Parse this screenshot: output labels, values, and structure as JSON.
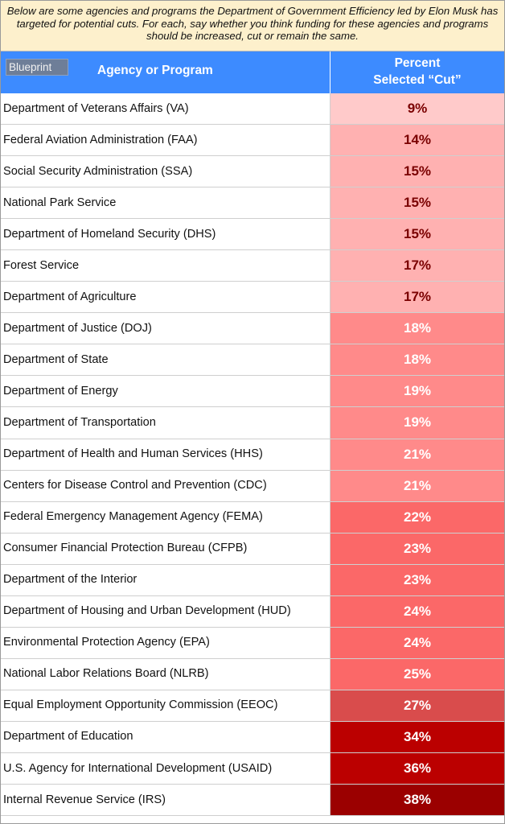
{
  "caption": "Below are some agencies and programs the Department of Government Efficiency led by Elon Musk has targeted for potential cuts. For each, say whether you think funding for these agencies and programs should be increased, cut or remain the same.",
  "logo_text": "Blueprint",
  "header": {
    "agency_label": "Agency or Program",
    "percent_line1": "Percent",
    "percent_line2": "Selected “Cut”"
  },
  "colors": {
    "header_blue": "#3d8bff",
    "caption_bg": "#fdf0cc"
  },
  "chart_data": {
    "type": "table",
    "columns": [
      "Agency or Program",
      "Percent Selected “Cut”"
    ],
    "rows": [
      {
        "agency": "Department of Veterans Affairs (VA)",
        "label": "9%",
        "value": 9,
        "bg": "#ffcaca",
        "fg": "#7a0000"
      },
      {
        "agency": "Federal Aviation Administration (FAA)",
        "label": "14%",
        "value": 14,
        "bg": "#ffb1b1",
        "fg": "#7a0000"
      },
      {
        "agency": "Social Security Administration (SSA)",
        "label": "15%",
        "value": 15,
        "bg": "#ffb1b1",
        "fg": "#7a0000"
      },
      {
        "agency": "National Park Service",
        "label": "15%",
        "value": 15,
        "bg": "#ffb1b1",
        "fg": "#7a0000"
      },
      {
        "agency": "Department of Homeland Security (DHS)",
        "label": "15%",
        "value": 15,
        "bg": "#ffb1b1",
        "fg": "#7a0000"
      },
      {
        "agency": "Forest Service",
        "label": "17%",
        "value": 17,
        "bg": "#ffb1b1",
        "fg": "#7a0000"
      },
      {
        "agency": "Department of Agriculture",
        "label": "17%",
        "value": 17,
        "bg": "#ffb1b1",
        "fg": "#7a0000"
      },
      {
        "agency": "Department of Justice (DOJ)",
        "label": "18%",
        "value": 18,
        "bg": "#ff8a8a",
        "fg": "#ffffff"
      },
      {
        "agency": "Department of State",
        "label": "18%",
        "value": 18,
        "bg": "#ff8a8a",
        "fg": "#ffffff"
      },
      {
        "agency": "Department of Energy",
        "label": "19%",
        "value": 19,
        "bg": "#ff8a8a",
        "fg": "#ffffff"
      },
      {
        "agency": "Department of Transportation",
        "label": "19%",
        "value": 19,
        "bg": "#ff8a8a",
        "fg": "#ffffff"
      },
      {
        "agency": "Department of Health and Human Services (HHS)",
        "label": "21%",
        "value": 21,
        "bg": "#ff8a8a",
        "fg": "#ffffff"
      },
      {
        "agency": "Centers for Disease Control and Prevention (CDC)",
        "label": "21%",
        "value": 21,
        "bg": "#ff8a8a",
        "fg": "#ffffff"
      },
      {
        "agency": "Federal Emergency Management Agency (FEMA)",
        "label": "22%",
        "value": 22,
        "bg": "#fb6868",
        "fg": "#ffffff"
      },
      {
        "agency": "Consumer Financial Protection Bureau (CFPB)",
        "label": "23%",
        "value": 23,
        "bg": "#fb6868",
        "fg": "#ffffff"
      },
      {
        "agency": "Department of the Interior",
        "label": "23%",
        "value": 23,
        "bg": "#fb6868",
        "fg": "#ffffff"
      },
      {
        "agency": "Department of Housing and Urban Development (HUD)",
        "label": "24%",
        "value": 24,
        "bg": "#fb6868",
        "fg": "#ffffff"
      },
      {
        "agency": "Environmental Protection Agency (EPA)",
        "label": "24%",
        "value": 24,
        "bg": "#fb6868",
        "fg": "#ffffff"
      },
      {
        "agency": "National Labor Relations Board (NLRB)",
        "label": "25%",
        "value": 25,
        "bg": "#fb6868",
        "fg": "#ffffff"
      },
      {
        "agency": "Equal Employment Opportunity Commission (EEOC)",
        "label": "27%",
        "value": 27,
        "bg": "#d94c4c",
        "fg": "#ffffff"
      },
      {
        "agency": "Department of Education",
        "label": "34%",
        "value": 34,
        "bg": "#bb0000",
        "fg": "#ffffff"
      },
      {
        "agency": "U.S. Agency for International Development (USAID)",
        "label": "36%",
        "value": 36,
        "bg": "#bb0000",
        "fg": "#ffffff"
      },
      {
        "agency": "Internal Revenue Service (IRS)",
        "label": "38%",
        "value": 38,
        "bg": "#9b0000",
        "fg": "#ffffff"
      }
    ]
  }
}
